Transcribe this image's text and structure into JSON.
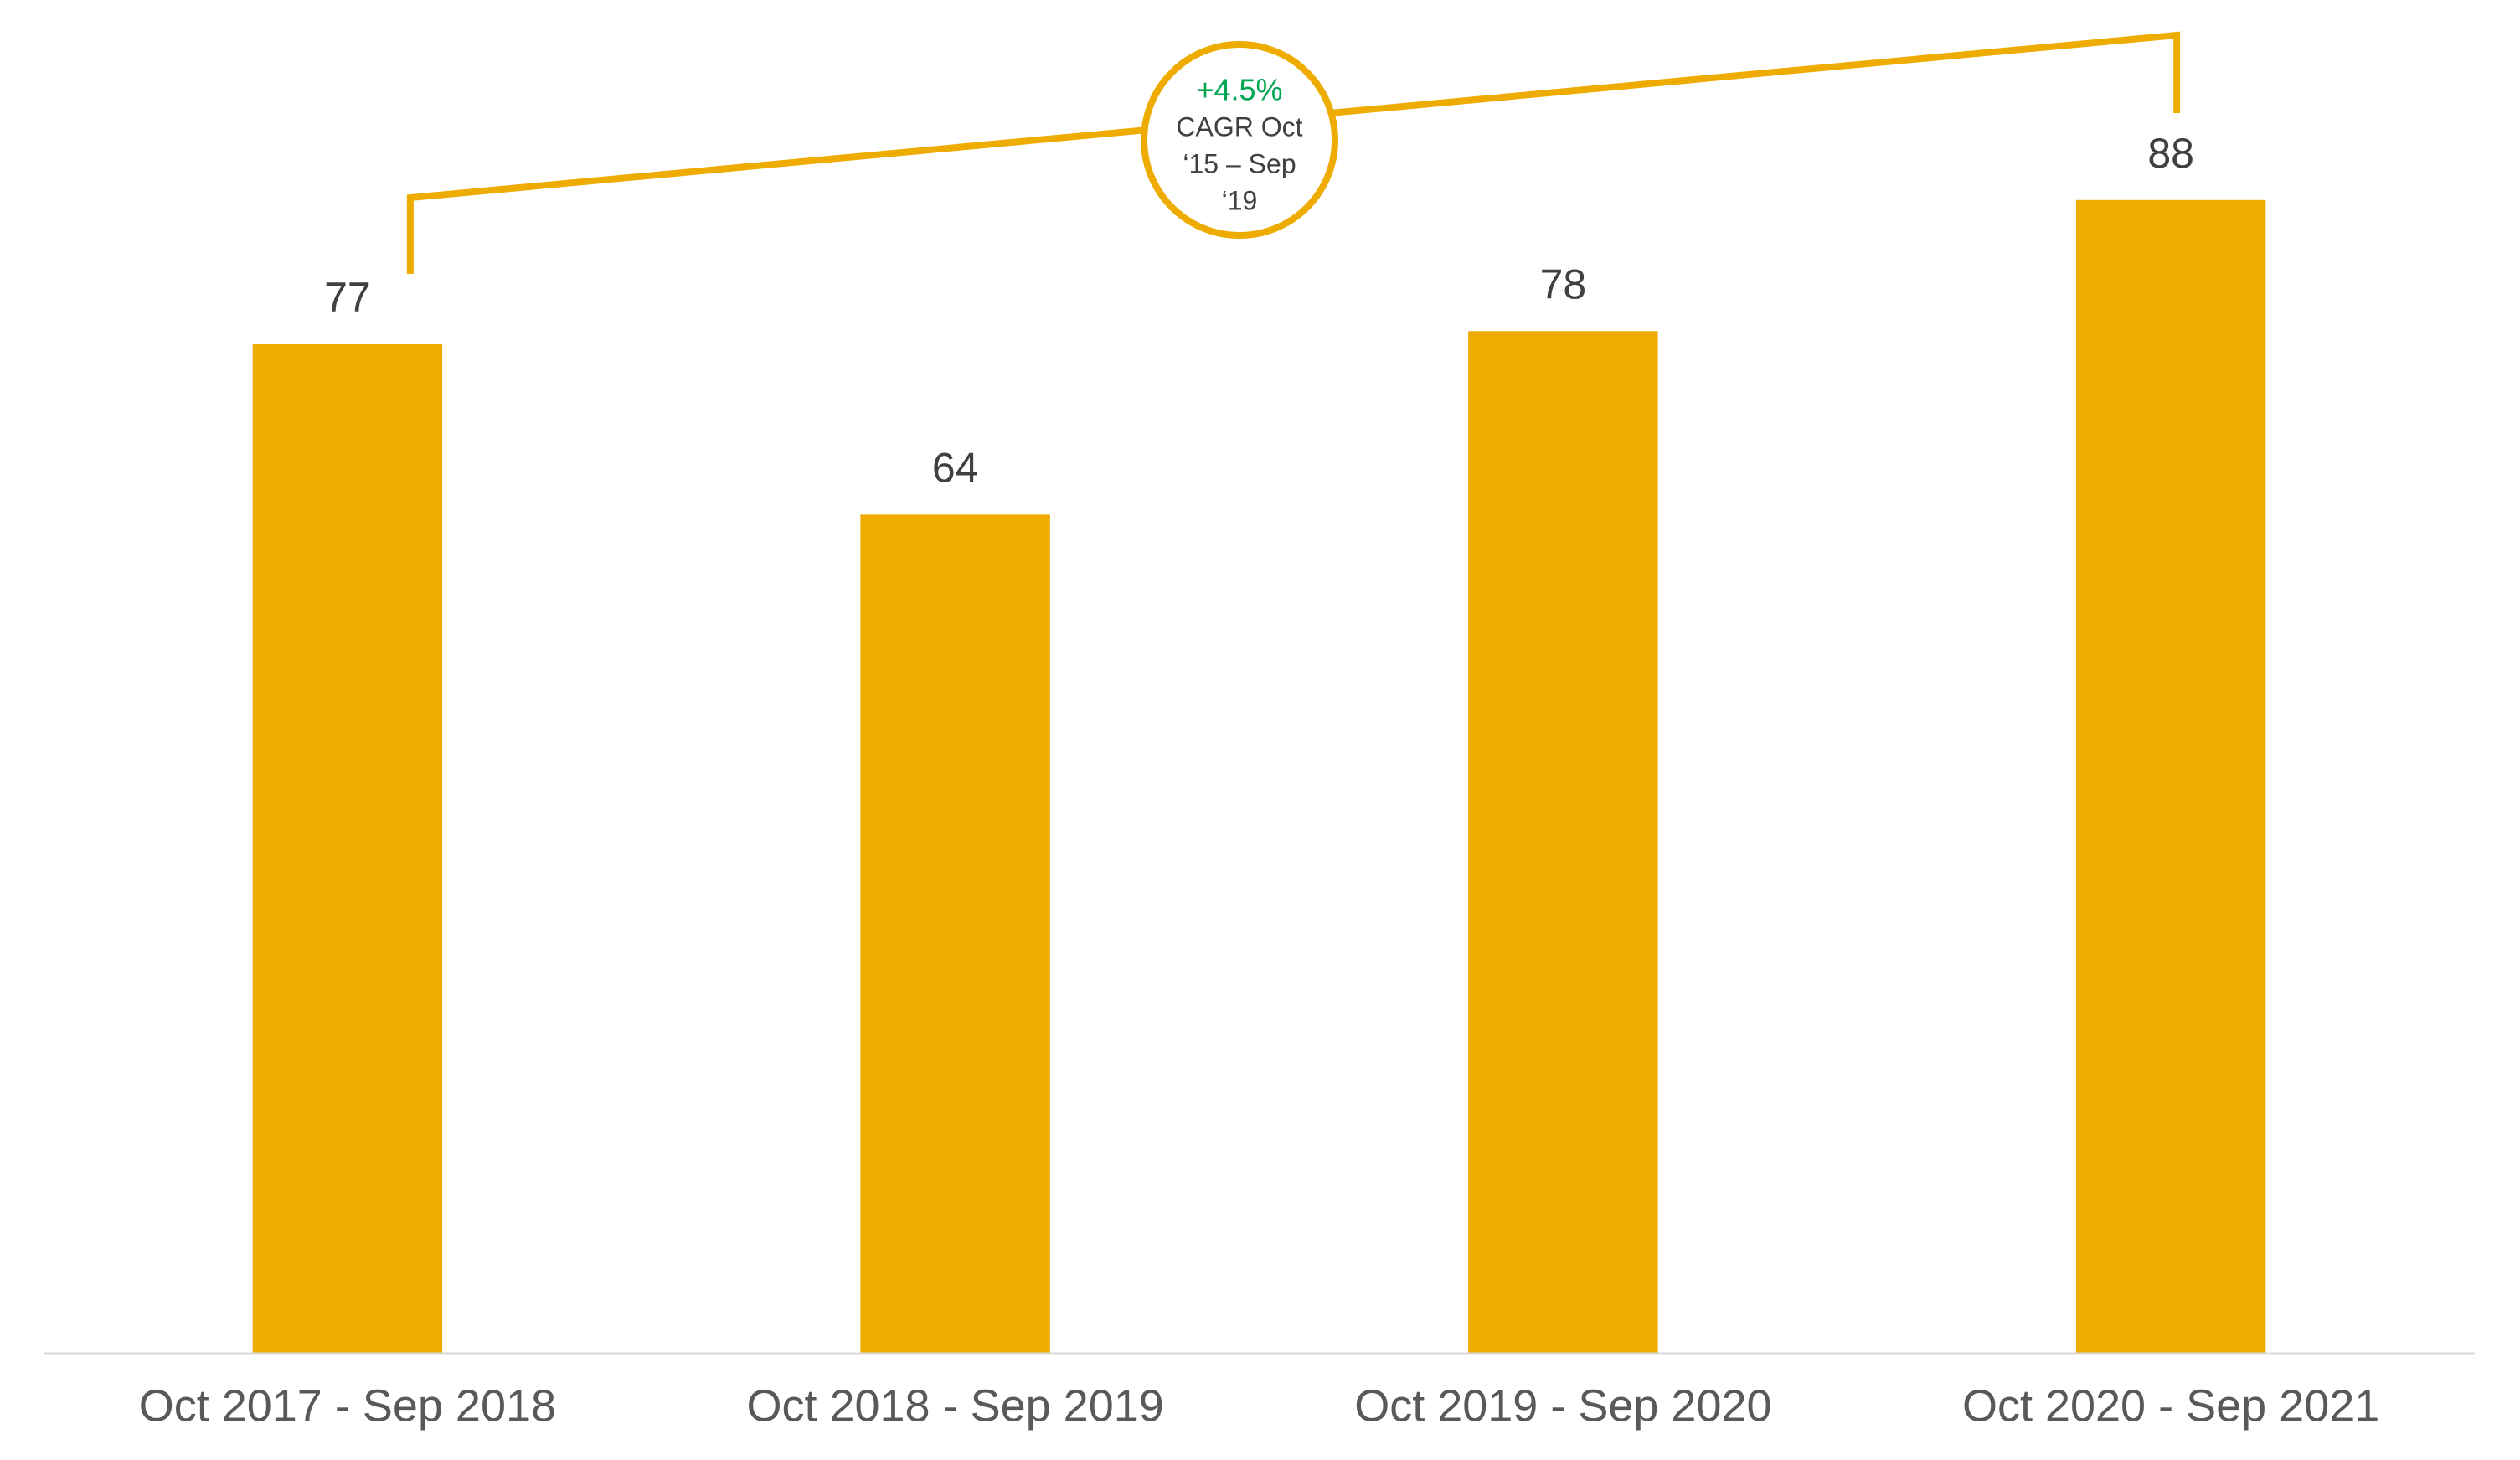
{
  "chart_data": {
    "type": "bar",
    "categories": [
      "Oct 2017 - Sep 2018",
      "Oct 2018 - Sep 2019",
      "Oct 2019 - Sep 2020",
      "Oct 2020 - Sep 2021"
    ],
    "values": [
      77,
      64,
      78,
      88
    ],
    "color": "#eeab00",
    "ylim": [
      0,
      100
    ],
    "grid": false,
    "annotation": {
      "lines": [
        "+4.5%",
        "CAGR Oct",
        "‘15 – Sep",
        "‘19"
      ],
      "color": "#eeab00",
      "highlight_color": "#00a651"
    }
  }
}
